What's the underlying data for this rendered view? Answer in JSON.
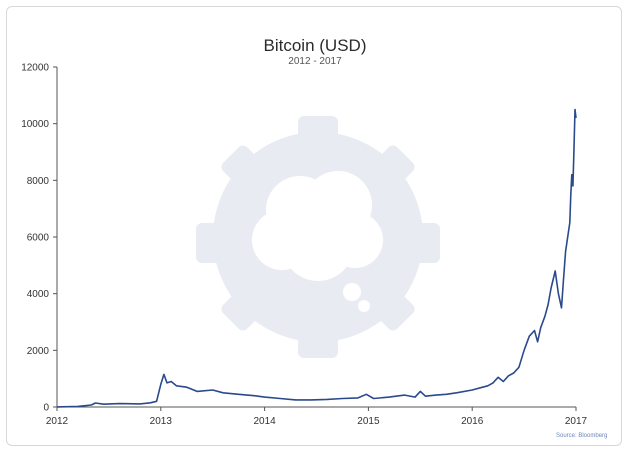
{
  "chart_data": {
    "type": "line",
    "title": "Bitcoin (USD)",
    "subtitle": "2012 - 2017",
    "xlabel": "",
    "ylabel": "",
    "xlim": [
      2012,
      2017
    ],
    "ylim": [
      0,
      12000
    ],
    "x_ticks": [
      "2012",
      "2013",
      "2014",
      "2015",
      "2016",
      "2017"
    ],
    "y_ticks": [
      "0",
      "2000",
      "4000",
      "6000",
      "8000",
      "10000",
      "12000"
    ],
    "grid": false,
    "legend": "none",
    "series": [
      {
        "color": "#2a4a8c",
        "x": [
          2012.0,
          2012.2,
          2012.33,
          2012.37,
          2012.45,
          2012.6,
          2012.8,
          2012.9,
          2012.96,
          2013.0,
          2013.03,
          2013.06,
          2013.1,
          2013.15,
          2013.25,
          2013.35,
          2013.5,
          2013.6,
          2013.75,
          2013.9,
          2014.0,
          2014.15,
          2014.3,
          2014.45,
          2014.6,
          2014.75,
          2014.9,
          2014.98,
          2015.05,
          2015.2,
          2015.35,
          2015.45,
          2015.5,
          2015.55,
          2015.65,
          2015.75,
          2015.85,
          2016.0,
          2016.1,
          2016.15,
          2016.2,
          2016.25,
          2016.3,
          2016.35,
          2016.4,
          2016.45,
          2016.5,
          2016.55,
          2016.6,
          2016.63,
          2016.66,
          2016.7,
          2016.73,
          2016.76,
          2016.8,
          2016.83,
          2016.86,
          2016.88,
          2016.9,
          2016.92,
          2016.94,
          2016.95,
          2016.96,
          2016.97,
          2016.98,
          2016.99,
          2017.0
        ],
        "y": [
          5,
          20,
          70,
          140,
          100,
          120,
          110,
          150,
          200,
          800,
          1150,
          850,
          900,
          750,
          700,
          550,
          600,
          500,
          450,
          400,
          350,
          300,
          250,
          250,
          270,
          300,
          320,
          450,
          300,
          350,
          420,
          350,
          550,
          380,
          420,
          450,
          500,
          600,
          700,
          750,
          850,
          1050,
          900,
          1100,
          1200,
          1400,
          2000,
          2500,
          2700,
          2300,
          2800,
          3200,
          3600,
          4200,
          4800,
          4000,
          3500,
          4500,
          5500,
          6000,
          6500,
          7500,
          8200,
          7800,
          9000,
          10500,
          10200
        ]
      }
    ],
    "source": "Source: Bloomberg"
  }
}
